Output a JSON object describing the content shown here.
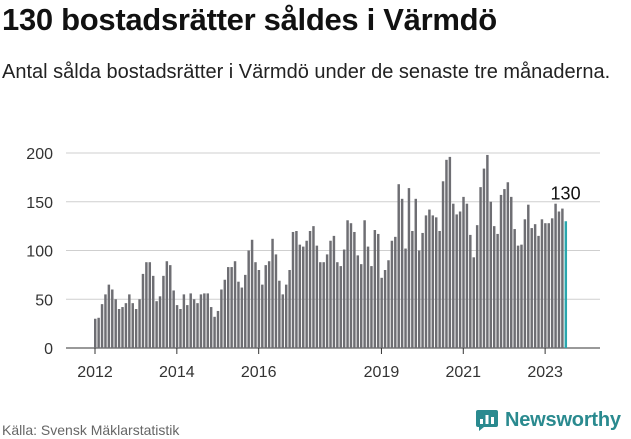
{
  "header": {
    "title": "130 bostadsrätter såldes i Värmdö",
    "subtitle": "Antal sålda bostadsrätter i Värmdö under de senaste tre månaderna."
  },
  "footer": {
    "source": "Källa: Svensk Mäklarstatistik",
    "brand": "Newsworthy"
  },
  "colors": {
    "bar": "#6e6e73",
    "highlight": "#2aa7ae",
    "grid": "#cfcfcf",
    "brand": "#2a8a8f"
  },
  "chart_data": {
    "type": "bar",
    "title": "130 bostadsrätter såldes i Värmdö",
    "xlabel": "",
    "ylabel": "",
    "ylim": [
      0,
      200
    ],
    "yticks": [
      0,
      50,
      100,
      150,
      200
    ],
    "start_month": "2012-01",
    "xtick_labels": [
      {
        "year": 2012,
        "label": "2012"
      },
      {
        "year": 2014,
        "label": "2014"
      },
      {
        "year": 2016,
        "label": "2016"
      },
      {
        "year": 2019,
        "label": "2019"
      },
      {
        "year": 2021,
        "label": "2021"
      },
      {
        "year": 2023,
        "label": "2023"
      }
    ],
    "highlight_label": "130",
    "values": [
      30,
      31,
      45,
      55,
      65,
      60,
      50,
      40,
      42,
      46,
      55,
      46,
      40,
      50,
      76,
      88,
      88,
      74,
      48,
      53,
      74,
      89,
      85,
      59,
      44,
      40,
      55,
      44,
      56,
      50,
      46,
      55,
      56,
      56,
      42,
      32,
      38,
      60,
      70,
      83,
      83,
      89,
      68,
      62,
      75,
      100,
      111,
      88,
      80,
      65,
      85,
      89,
      112,
      96,
      69,
      55,
      65,
      80,
      119,
      120,
      106,
      104,
      110,
      120,
      125,
      105,
      88,
      88,
      96,
      110,
      115,
      88,
      84,
      101,
      131,
      128,
      119,
      95,
      86,
      131,
      104,
      84,
      121,
      117,
      72,
      80,
      90,
      110,
      114,
      168,
      153,
      102,
      164,
      120,
      153,
      100,
      118,
      136,
      142,
      136,
      134,
      120,
      171,
      193,
      196,
      148,
      137,
      140,
      155,
      148,
      116,
      93,
      126,
      165,
      184,
      198,
      150,
      125,
      117,
      157,
      163,
      170,
      155,
      122,
      105,
      106,
      132,
      147,
      123,
      127,
      115,
      132,
      128,
      128,
      133,
      148,
      140,
      143,
      130
    ]
  }
}
